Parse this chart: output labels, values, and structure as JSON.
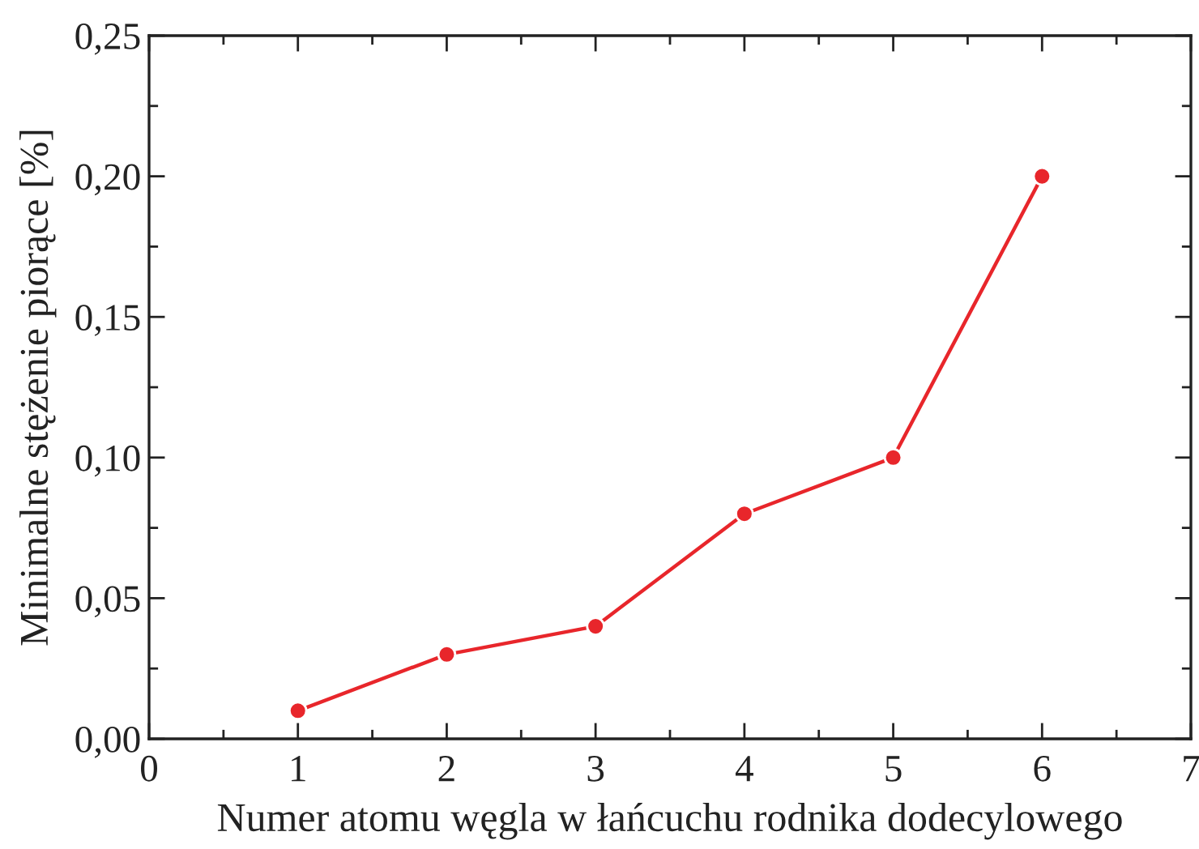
{
  "chart_data": {
    "type": "line",
    "xlabel": "Numer atomu węgla w łańcuchu rodnika dodecylowego",
    "ylabel": "Minimalne stężenie piorące [%]",
    "x": [
      1,
      2,
      3,
      4,
      5,
      6
    ],
    "series": [
      {
        "color": "#e8262b",
        "values": [
          0.01,
          0.03,
          0.04,
          0.08,
          0.1,
          0.2
        ]
      }
    ],
    "xlim": [
      0,
      7
    ],
    "xticks": [
      0,
      1,
      2,
      3,
      4,
      5,
      6,
      7
    ],
    "ylim": [
      0,
      0.25
    ],
    "yticks": [
      {
        "value": 0,
        "label": "0,00"
      },
      {
        "value": 0.05,
        "label": "0,05"
      },
      {
        "value": 0.1,
        "label": "0,10"
      },
      {
        "value": 0.15,
        "label": "0,15"
      },
      {
        "value": 0.2,
        "label": "0,20"
      },
      {
        "value": 0.25,
        "label": "0,25"
      }
    ],
    "marker": "circle",
    "line_style": "solid",
    "grid": false,
    "legend": false
  }
}
